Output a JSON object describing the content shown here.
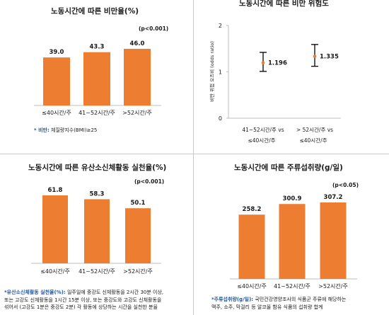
{
  "panels": {
    "obesity": {
      "title": "노동시간에 따른 비만율(%)",
      "pvalue": "(p<0.001)",
      "footnote_label": "* 비만:",
      "footnote_text": " 체질량지수(BMI)≥25"
    },
    "risk": {
      "title": "노동시간에 따른 비만 위험도",
      "ylabel": "비만 위험 오즈비 (odds ratio)"
    },
    "activity": {
      "title": "노동시간에 따른 유산소신체활동 실천율(%)",
      "pvalue": "(p<0.001)",
      "footnote_label": "*유산소신체활동 실천율(%):",
      "footnote_line1": " 일주일에 중강도 신체활동을 2시간 30분 이상,",
      "footnote_line2": "또는 고강도 신체활동을 1시간 15분 이상, 또는 중강도와 고강도 신체활동을",
      "footnote_line3": "섞어서 (고강도 1분은 중강도 2분) 각 활동에 상당하는 시간을 실천한 분율"
    },
    "alcohol": {
      "title": "노동시간에 따른 주류섭취량(g/일)",
      "pvalue": "(p<0.05)",
      "footnote_label": "*주류섭취량(g/일):",
      "footnote_line1": " 국민건강영양조사의 식품군 주류에 해당하는",
      "footnote_line2": "맥주, 소주, 막걸리 등 알코올 함유 식품의 섭취량 합계"
    }
  },
  "colors": {
    "bar": "#ed7d31",
    "errorbar": "#000000",
    "axis": "#bfbfbf"
  },
  "chart_data": [
    {
      "id": "obesity",
      "type": "bar",
      "title": "노동시간에 따른 비만율(%)",
      "categories": [
        "≤40시간/주",
        "41~52시간/주",
        ">52시간/주"
      ],
      "values": [
        39.0,
        43.3,
        46.0
      ],
      "value_labels": [
        "39.0",
        "43.3",
        "46.0"
      ],
      "ylim": [
        0,
        60
      ]
    },
    {
      "id": "risk",
      "type": "scatter",
      "title": "노동시간에 따른 비만 위험도",
      "ylabel": "비만 위험 오즈비 (odds ratio)",
      "categories": [
        [
          "41~52시간/주 vs",
          "≤40시간/주"
        ],
        [
          "> 52시간/주 vs",
          "≤40시간/주"
        ]
      ],
      "values": [
        1.196,
        1.335
      ],
      "value_labels": [
        "1.196",
        "1.335"
      ],
      "ci_low": [
        1.01,
        1.12
      ],
      "ci_high": [
        1.42,
        1.59
      ],
      "ylim": [
        0,
        2
      ],
      "yticks": [
        "0",
        "1",
        "2"
      ]
    },
    {
      "id": "activity",
      "type": "bar",
      "title": "노동시간에 따른 유산소신체활동 실천율(%)",
      "categories": [
        "≤40시간/주",
        "41~52시간/주",
        ">52시간/주"
      ],
      "values": [
        61.8,
        58.3,
        50.1
      ],
      "value_labels": [
        "61.8",
        "58.3",
        "50.1"
      ],
      "ylim": [
        0,
        80
      ]
    },
    {
      "id": "alcohol",
      "type": "bar",
      "title": "노동시간에 따른 주류섭취량(g/일)",
      "categories": [
        "≤40시간/주",
        "41~52시간/주",
        ">52시간/주"
      ],
      "values": [
        258.2,
        300.9,
        307.2
      ],
      "value_labels": [
        "258.2",
        "300.9",
        "307.2"
      ],
      "ylim": [
        0,
        400
      ]
    }
  ]
}
